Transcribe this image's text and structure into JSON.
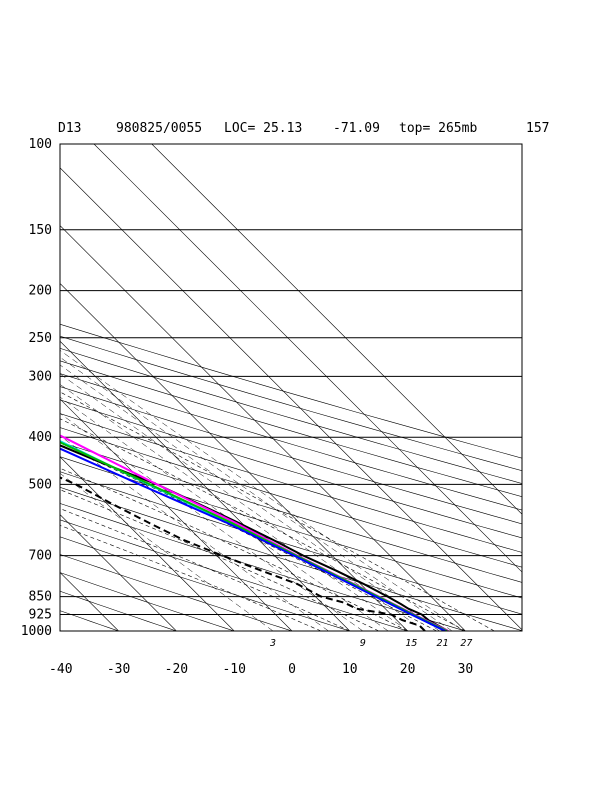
{
  "header": {
    "station": "D13",
    "datetime": "980825/0055",
    "loc": "LOC= 25.13",
    "lon": "-71.09",
    "top": "top= 265mb",
    "number": "157"
  },
  "chart_data": {
    "type": "line",
    "diagram": "skew-T log-P",
    "y_axis": {
      "scale": "log",
      "reversed": true,
      "range": [
        100,
        1000
      ],
      "ticks": [
        100,
        150,
        200,
        250,
        300,
        400,
        500,
        700,
        850,
        925,
        1000
      ]
    },
    "x_axis": {
      "range": [
        -40,
        35
      ],
      "ticks": [
        -40,
        -30,
        -20,
        -10,
        0,
        10,
        20,
        30
      ]
    },
    "isobar_grid": true,
    "mixing_ratio_labels": [
      "3",
      "9",
      "15",
      "21",
      "27"
    ],
    "series": [
      {
        "color": "#000000",
        "style": "solid",
        "points": [
          [
            1000,
            27
          ],
          [
            950,
            25.5
          ],
          [
            925,
            25.3
          ],
          [
            900,
            24
          ],
          [
            880,
            23.5
          ],
          [
            850,
            22.5
          ],
          [
            800,
            20.5
          ],
          [
            750,
            18
          ],
          [
            700,
            15
          ],
          [
            650,
            12.5
          ],
          [
            600,
            9.5
          ],
          [
            550,
            6
          ],
          [
            500,
            2
          ],
          [
            450,
            -4
          ],
          [
            400,
            -10
          ],
          [
            350,
            -16
          ],
          [
            320,
            -20
          ],
          [
            300,
            -24
          ],
          [
            250,
            -34
          ],
          [
            200,
            -45
          ],
          [
            170,
            -52
          ],
          [
            150,
            -57
          ],
          [
            130,
            -61
          ],
          [
            115,
            -63
          ],
          [
            100,
            -65
          ]
        ]
      },
      {
        "color": "#000000",
        "style": "dashed",
        "points": [
          [
            1000,
            23
          ],
          [
            975,
            23
          ],
          [
            950,
            21
          ],
          [
            925,
            20
          ],
          [
            900,
            15
          ],
          [
            875,
            14
          ],
          [
            850,
            11
          ],
          [
            800,
            9
          ],
          [
            750,
            5
          ],
          [
            700,
            1
          ],
          [
            650,
            -3
          ],
          [
            600,
            -6
          ],
          [
            550,
            -9
          ],
          [
            500,
            -12
          ],
          [
            470,
            -15
          ],
          [
            460,
            -34
          ],
          [
            440,
            -35
          ],
          [
            420,
            -30
          ],
          [
            400,
            -35
          ],
          [
            380,
            -32
          ],
          [
            360,
            -38
          ],
          [
            340,
            -40
          ],
          [
            320,
            -42
          ],
          [
            300,
            -44
          ],
          [
            290,
            -45
          ]
        ]
      },
      {
        "color": "#ff00ff",
        "style": "solid",
        "points": [
          [
            1000,
            27
          ],
          [
            925,
            24
          ],
          [
            850,
            21
          ],
          [
            700,
            14
          ],
          [
            600,
            9
          ],
          [
            500,
            2
          ],
          [
            400,
            -6
          ],
          [
            300,
            -17
          ],
          [
            250,
            -25
          ],
          [
            200,
            -36
          ],
          [
            150,
            -50
          ],
          [
            120,
            -60
          ],
          [
            100,
            -67
          ]
        ]
      },
      {
        "color": "#00dddd",
        "style": "solid",
        "points": [
          [
            1000,
            26.5
          ],
          [
            925,
            23.5
          ],
          [
            850,
            20.5
          ],
          [
            700,
            13.5
          ],
          [
            600,
            8
          ],
          [
            500,
            0.5
          ],
          [
            400,
            -8
          ],
          [
            300,
            -20
          ],
          [
            250,
            -28
          ],
          [
            200,
            -40
          ],
          [
            150,
            -54
          ],
          [
            120,
            -64
          ],
          [
            100,
            -71
          ]
        ]
      },
      {
        "color": "#00bb00",
        "style": "solid",
        "points": [
          [
            1000,
            26.8
          ],
          [
            925,
            23.8
          ],
          [
            850,
            20.8
          ],
          [
            700,
            13.8
          ],
          [
            600,
            8.3
          ],
          [
            500,
            0.8
          ],
          [
            400,
            -8.5
          ],
          [
            300,
            -21
          ],
          [
            250,
            -29
          ],
          [
            200,
            -41
          ],
          [
            150,
            -55
          ],
          [
            120,
            -66
          ],
          [
            100,
            -74
          ]
        ]
      },
      {
        "color": "#0000ff",
        "style": "solid",
        "points": [
          [
            1000,
            26.5
          ],
          [
            925,
            23.5
          ],
          [
            850,
            20.4
          ],
          [
            700,
            13.4
          ],
          [
            600,
            7.5
          ],
          [
            500,
            -1
          ],
          [
            400,
            -11
          ],
          [
            300,
            -23
          ],
          [
            250,
            -31
          ],
          [
            200,
            -43
          ],
          [
            150,
            -58
          ],
          [
            120,
            -68
          ],
          [
            100,
            -76
          ]
        ]
      }
    ]
  }
}
